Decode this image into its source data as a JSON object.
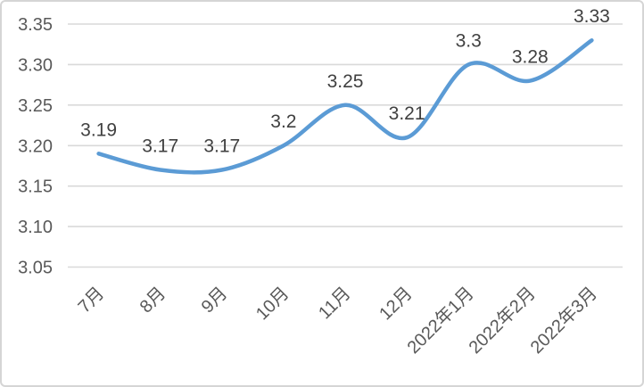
{
  "chart_data": {
    "type": "line",
    "title": "",
    "xlabel": "",
    "ylabel": "",
    "categories": [
      "7月",
      "8月",
      "9月",
      "10月",
      "11月",
      "12月",
      "2022年1月",
      "2022年2月",
      "2022年3月"
    ],
    "values": [
      3.19,
      3.17,
      3.17,
      3.2,
      3.25,
      3.21,
      3.3,
      3.28,
      3.33
    ],
    "labels": [
      "3.19",
      "3.17",
      "3.17",
      "3.2",
      "3.25",
      "3.21",
      "3.3",
      "3.28",
      "3.33"
    ],
    "ylim": [
      3.05,
      3.35
    ],
    "ytick_step": 0.05,
    "ytick_labels": [
      "3.05",
      "3.10",
      "3.15",
      "3.20",
      "3.25",
      "3.30",
      "3.35"
    ],
    "grid": "horizontal-only",
    "legend": "none",
    "smooth_line": true,
    "x_label_rotation_deg": -45,
    "colors": {
      "line": "#5B9BD5",
      "gridline": "#D9D9D9",
      "axis_text": "#595959",
      "data_label_text": "#404040",
      "background": "#FFFFFF",
      "frame_border": "#D5D5D5"
    }
  }
}
